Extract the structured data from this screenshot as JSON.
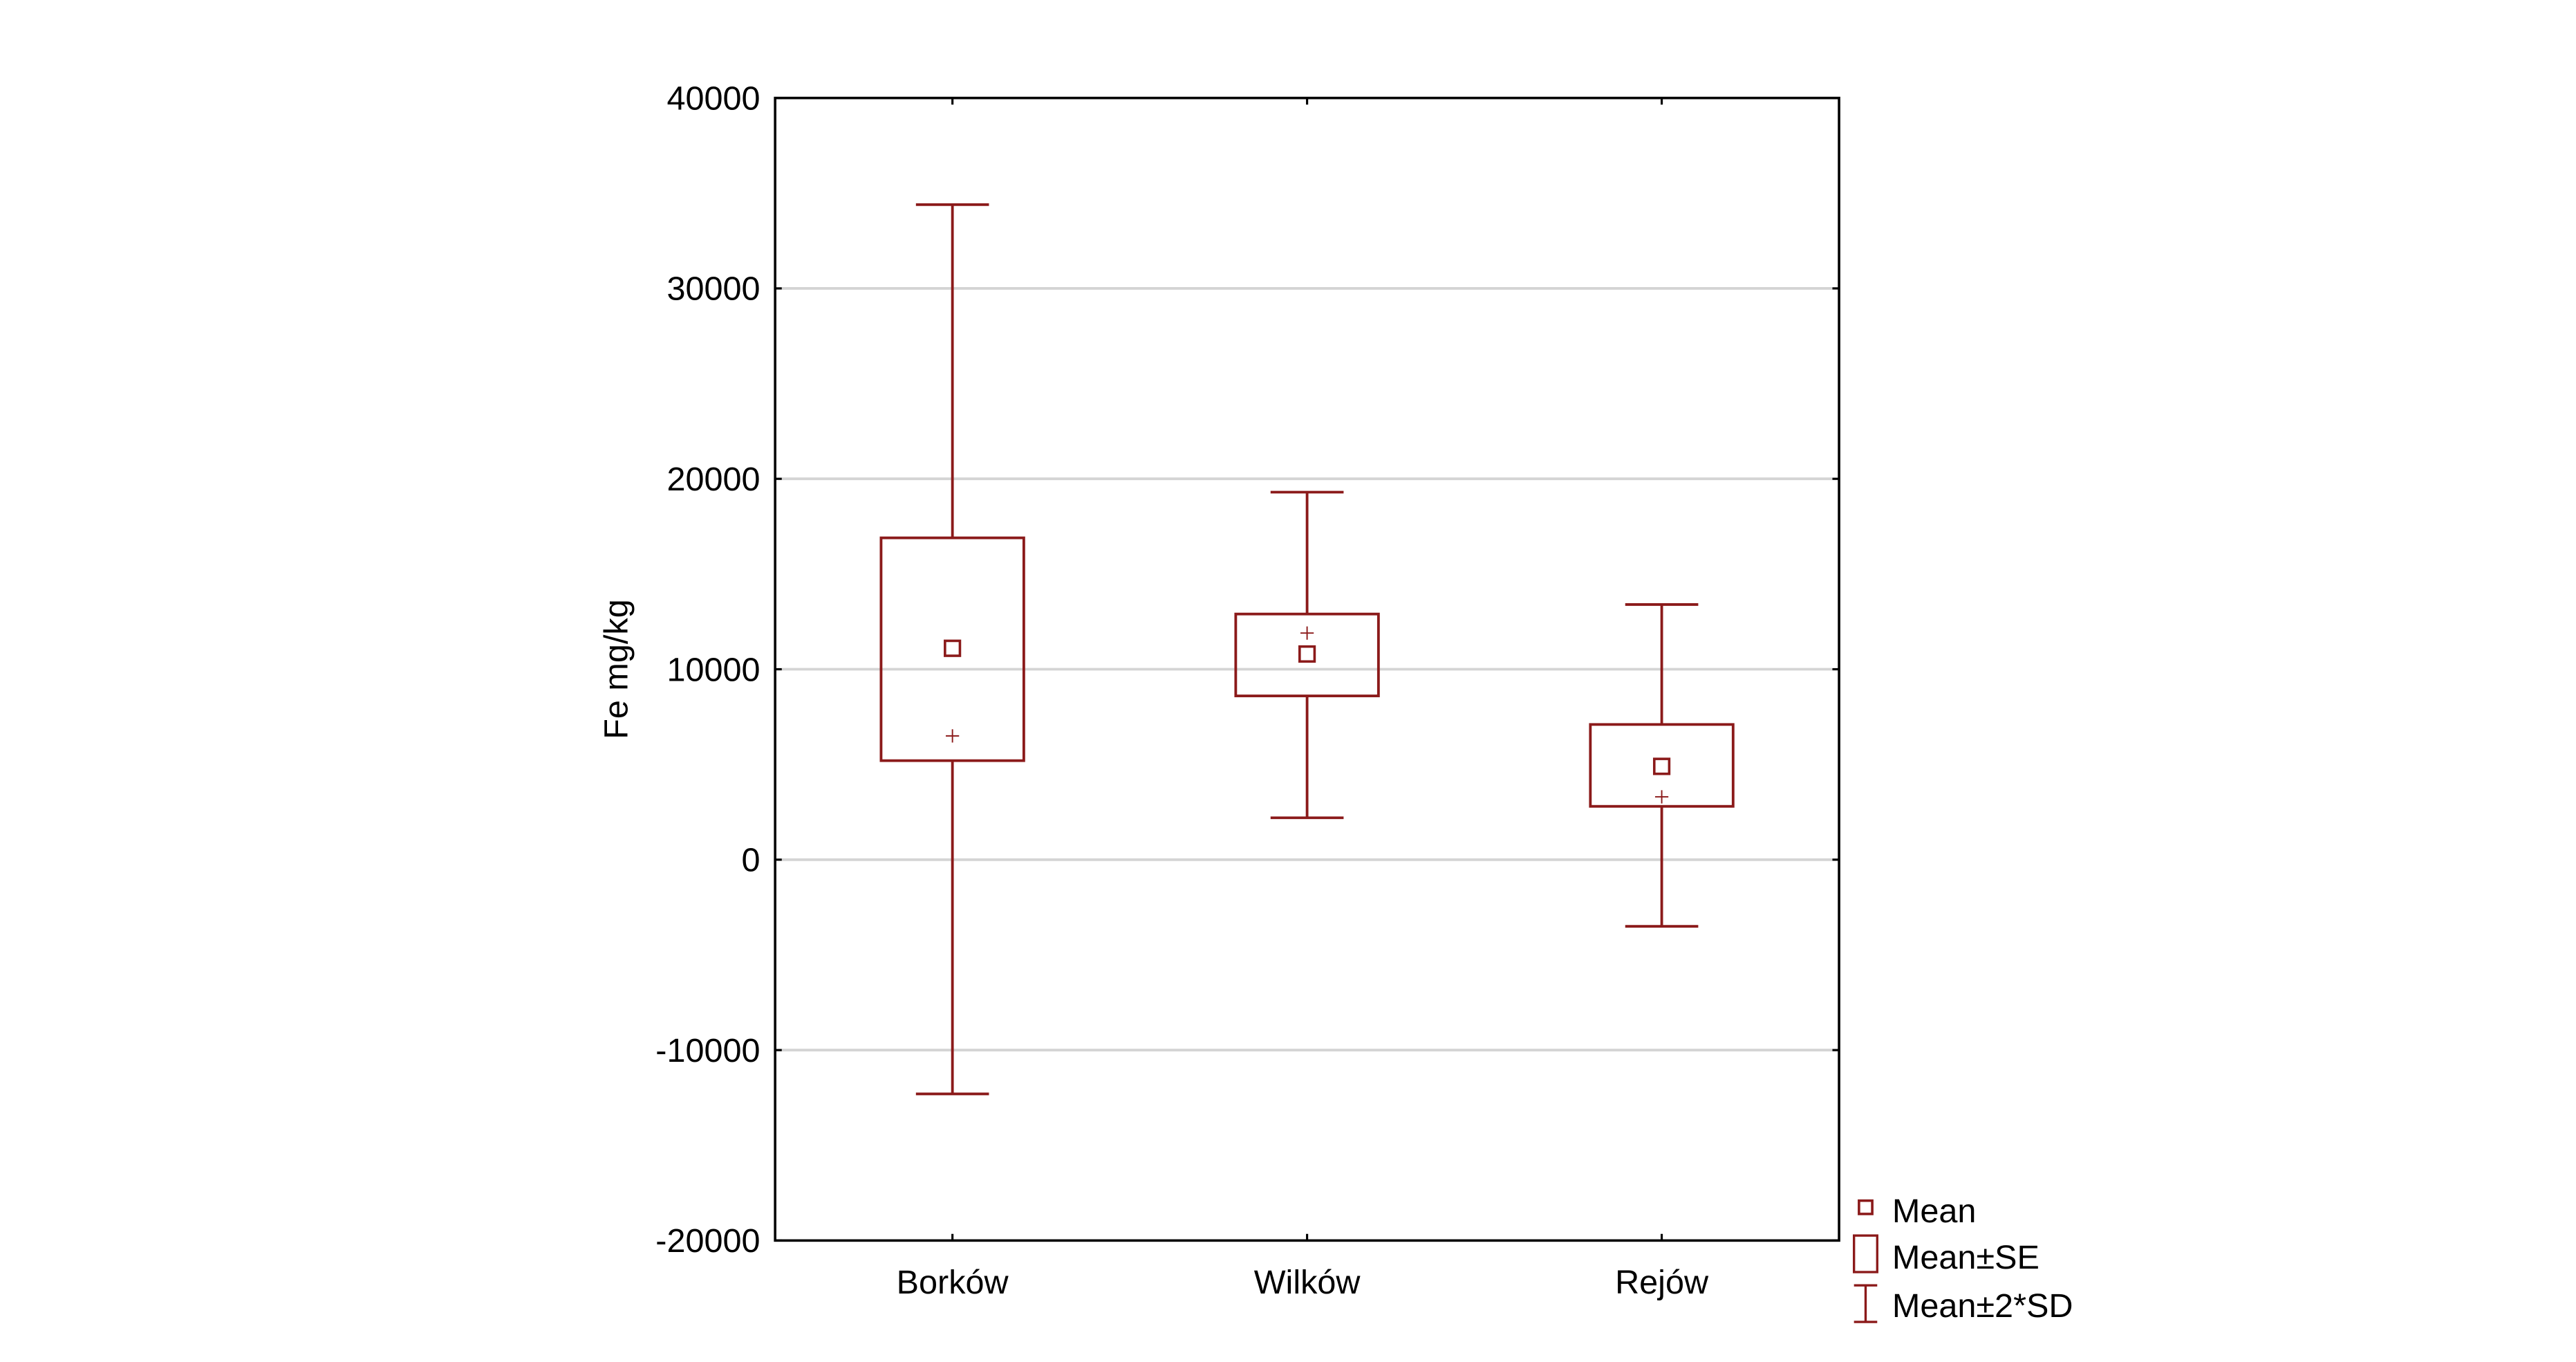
{
  "chart_data": {
    "type": "box",
    "title": "",
    "xlabel": "",
    "ylabel": "Fe mg/kg",
    "ylim": [
      -20000,
      40000
    ],
    "yticks": [
      40000,
      30000,
      20000,
      10000,
      0,
      -10000,
      -20000
    ],
    "ytick_labels": [
      "40000",
      "30000",
      "20000",
      "10000",
      "0",
      "-10000",
      "-20000"
    ],
    "grid": true,
    "categories": [
      "Borków",
      "Wilków",
      "Rejów"
    ],
    "series": [
      {
        "category": "Borków",
        "mean": 11100,
        "se_low": 5200,
        "se_high": 16900,
        "sd2_low": -12300,
        "sd2_high": 34400,
        "median": 6500
      },
      {
        "category": "Wilków",
        "mean": 10800,
        "se_low": 8600,
        "se_high": 12900,
        "sd2_low": 2200,
        "sd2_high": 19300,
        "median": 11900
      },
      {
        "category": "Rejów",
        "mean": 4900,
        "se_low": 2800,
        "se_high": 7100,
        "sd2_low": -3500,
        "sd2_high": 13400,
        "median": 3300
      }
    ],
    "legend": {
      "position": "bottom-right-outside",
      "entries": [
        {
          "label": "Mean",
          "symbol": "mean-marker"
        },
        {
          "label": "Mean±SE",
          "symbol": "box"
        },
        {
          "label": "Mean±2*SD",
          "symbol": "whisker"
        }
      ]
    },
    "colors": {
      "series": "#8b1a1a",
      "grid": "#d4d4d4",
      "axis": "#000000"
    }
  }
}
